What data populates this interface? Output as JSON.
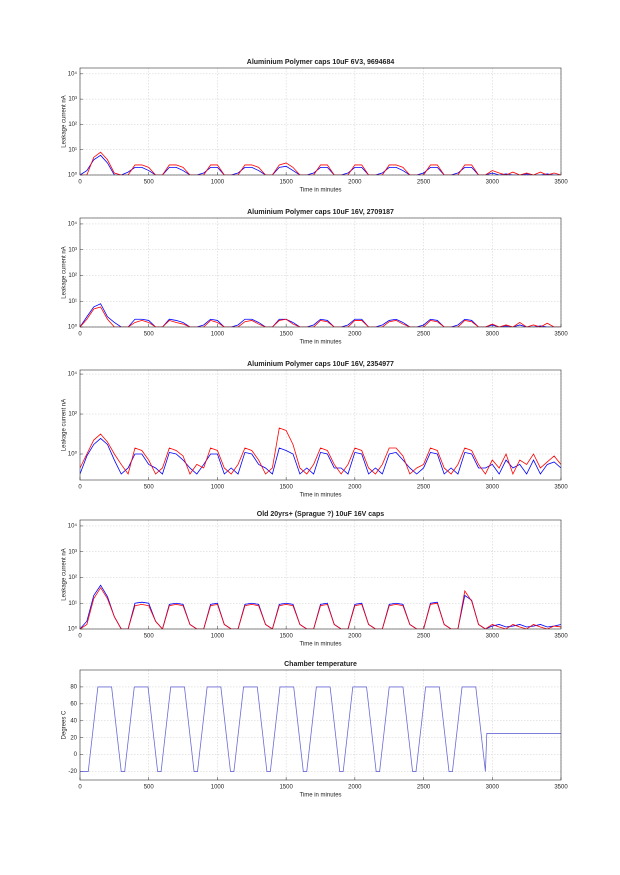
{
  "chart_data": [
    {
      "type": "line",
      "title": "Aluminium Polymer caps 10uF 6V3, 9694684",
      "xlabel": "Time in minutes",
      "ylabel": "Leakage current nA",
      "yscale": "log",
      "grid": true,
      "xlim": [
        0,
        3500
      ],
      "xticks": [
        0,
        500,
        1000,
        1500,
        2000,
        2500,
        3000,
        3500
      ],
      "ylim": [
        1,
        17000
      ],
      "yticks": [
        {
          "value": 1,
          "label": "10⁰"
        },
        {
          "value": 10,
          "label": "10¹"
        },
        {
          "value": 100,
          "label": "10²"
        },
        {
          "value": 1000,
          "label": "10³"
        },
        {
          "value": 10000,
          "label": "10⁴"
        }
      ],
      "x": [
        0,
        50,
        100,
        150,
        200,
        250,
        300,
        350,
        400,
        450,
        500,
        550,
        600,
        650,
        700,
        750,
        800,
        850,
        900,
        950,
        1000,
        1050,
        1100,
        1150,
        1200,
        1250,
        1300,
        1350,
        1400,
        1450,
        1500,
        1550,
        1600,
        1650,
        1700,
        1750,
        1800,
        1850,
        1900,
        1950,
        2000,
        2050,
        2100,
        2150,
        2200,
        2250,
        2300,
        2350,
        2400,
        2450,
        2500,
        2550,
        2600,
        2650,
        2700,
        2750,
        2800,
        2850,
        2900,
        2950,
        3000,
        3050,
        3100,
        3150,
        3200,
        3250,
        3300,
        3350,
        3400,
        3450,
        3500
      ],
      "series": [
        {
          "color": "#0000ff",
          "values": [
            1,
            1.5,
            4,
            6,
            3,
            1,
            1,
            1.3,
            2,
            2,
            1.5,
            1,
            1,
            2,
            2,
            1.5,
            1,
            1,
            1.2,
            2,
            2,
            1,
            1,
            1.2,
            2,
            2,
            1.5,
            1,
            1,
            2,
            2.2,
            1.5,
            1,
            1,
            1.2,
            2,
            2,
            1,
            1,
            1.2,
            2,
            2,
            1,
            1,
            1.2,
            2,
            2,
            1.5,
            1,
            1,
            1.2,
            2,
            2,
            1,
            1,
            1.2,
            2,
            2,
            1,
            1,
            1.2,
            1,
            1.1,
            1,
            1,
            1.1,
            1,
            1,
            1.1,
            1,
            1
          ]
        },
        {
          "color": "#ff0000",
          "values": [
            1,
            1,
            5,
            8,
            4,
            1.2,
            1,
            1,
            2.5,
            2.5,
            2,
            1,
            1,
            2.5,
            2.5,
            2,
            1,
            1,
            1,
            2.5,
            2.5,
            1,
            1,
            1,
            2.5,
            2.5,
            2,
            1,
            1,
            2.5,
            3,
            2,
            1,
            1,
            1,
            2.5,
            2.5,
            1,
            1,
            1,
            2.5,
            2.5,
            1,
            1,
            1,
            2.5,
            2.5,
            2,
            1,
            1,
            1,
            2.5,
            2.5,
            1,
            1,
            1,
            2.5,
            2.5,
            1,
            1,
            1.5,
            1.2,
            1,
            1.3,
            1,
            1.2,
            1,
            1.3,
            1,
            1.2,
            1
          ]
        }
      ]
    },
    {
      "type": "line",
      "title": "Aluminium Polymer caps 10uF 16V, 2709187",
      "xlabel": "Time in minutes",
      "ylabel": "Leakage current nA",
      "yscale": "log",
      "grid": true,
      "xlim": [
        0,
        3500
      ],
      "xticks": [
        0,
        500,
        1000,
        1500,
        2000,
        2500,
        3000,
        3500
      ],
      "ylim": [
        1,
        17000
      ],
      "yticks": [
        {
          "value": 1,
          "label": "10⁰"
        },
        {
          "value": 10,
          "label": "10¹"
        },
        {
          "value": 100,
          "label": "10²"
        },
        {
          "value": 1000,
          "label": "10³"
        },
        {
          "value": 10000,
          "label": "10⁴"
        }
      ],
      "x": [
        0,
        50,
        100,
        150,
        200,
        250,
        300,
        350,
        400,
        450,
        500,
        550,
        600,
        650,
        700,
        750,
        800,
        850,
        900,
        950,
        1000,
        1050,
        1100,
        1150,
        1200,
        1250,
        1300,
        1350,
        1400,
        1450,
        1500,
        1550,
        1600,
        1650,
        1700,
        1750,
        1800,
        1850,
        1900,
        1950,
        2000,
        2050,
        2100,
        2150,
        2200,
        2250,
        2300,
        2350,
        2400,
        2450,
        2500,
        2550,
        2600,
        2650,
        2700,
        2750,
        2800,
        2850,
        2900,
        2950,
        3000,
        3050,
        3100,
        3150,
        3200,
        3250,
        3300,
        3350,
        3400,
        3450,
        3500
      ],
      "series": [
        {
          "color": "#0000ff",
          "values": [
            1,
            2.5,
            6,
            8,
            2.5,
            1.5,
            1,
            1,
            2,
            2,
            1.8,
            1,
            1,
            2,
            1.8,
            1.5,
            1,
            1,
            1.2,
            2,
            1.8,
            1,
            1,
            1.2,
            2,
            2,
            1.5,
            1,
            1,
            2,
            2,
            1.5,
            1,
            1,
            1.2,
            2,
            1.8,
            1,
            1,
            1.2,
            2,
            2,
            1,
            1,
            1.2,
            1.8,
            2,
            1.5,
            1,
            1,
            1.2,
            2,
            1.8,
            1,
            1,
            1.2,
            2,
            1.8,
            1,
            1,
            1.2,
            1,
            1.1,
            1,
            1.2,
            1,
            1,
            1.1,
            1,
            1,
            1
          ]
        },
        {
          "color": "#ff0000",
          "values": [
            1,
            2,
            5,
            6,
            2,
            1,
            1,
            1,
            1.5,
            1.8,
            1.5,
            1,
            1,
            1.8,
            1.5,
            1.3,
            1,
            1,
            1,
            1.8,
            1.5,
            1,
            1,
            1,
            1.6,
            1.8,
            1.3,
            1,
            1,
            1.8,
            2,
            1.3,
            1,
            1,
            1,
            1.8,
            1.6,
            1,
            1,
            1,
            1.8,
            1.8,
            1,
            1,
            1,
            1.6,
            1.8,
            1.3,
            1,
            1,
            1,
            1.8,
            1.6,
            1,
            1,
            1,
            1.8,
            1.6,
            1,
            1,
            1.3,
            1,
            1.2,
            1,
            1.5,
            1,
            1.2,
            1,
            1.4,
            1,
            1
          ]
        }
      ]
    },
    {
      "type": "line",
      "title": "Aluminium Polymer caps 10uF 16V, 2354977",
      "xlabel": "Time in minutes",
      "ylabel": "Leakage current nA",
      "yscale": "log",
      "grid": true,
      "xlim": [
        0,
        3500
      ],
      "xticks": [
        0,
        500,
        1000,
        1500,
        2000,
        2500,
        3000,
        3500
      ],
      "ylim": [
        0.05,
        16000
      ],
      "yticks": [
        {
          "value": 1,
          "label": "10⁰"
        },
        {
          "value": 100,
          "label": "10²"
        },
        {
          "value": 10000,
          "label": "10⁴"
        }
      ],
      "x": [
        0,
        50,
        100,
        150,
        200,
        250,
        300,
        350,
        400,
        450,
        500,
        550,
        600,
        650,
        700,
        750,
        800,
        850,
        900,
        950,
        1000,
        1050,
        1100,
        1150,
        1200,
        1250,
        1300,
        1350,
        1400,
        1450,
        1500,
        1550,
        1600,
        1650,
        1700,
        1750,
        1800,
        1850,
        1900,
        1950,
        2000,
        2050,
        2100,
        2150,
        2200,
        2250,
        2300,
        2350,
        2400,
        2450,
        2500,
        2550,
        2600,
        2650,
        2700,
        2750,
        2800,
        2850,
        2900,
        2950,
        3000,
        3050,
        3100,
        3150,
        3200,
        3250,
        3300,
        3350,
        3400,
        3450,
        3500
      ],
      "series": [
        {
          "color": "#0000ff",
          "values": [
            0.1,
            0.8,
            3,
            6,
            3,
            0.5,
            0.1,
            0.2,
            1,
            1,
            0.3,
            0.2,
            0.1,
            1.2,
            1,
            0.5,
            0.2,
            0.1,
            0.3,
            1,
            1,
            0.1,
            0.2,
            0.1,
            1.2,
            1,
            0.3,
            0.2,
            0.1,
            2,
            1.5,
            1,
            0.1,
            0.2,
            0.1,
            1.2,
            1,
            0.2,
            0.2,
            0.1,
            1.2,
            1,
            0.1,
            0.2,
            0.1,
            1,
            1.2,
            0.5,
            0.2,
            0.1,
            0.2,
            1.2,
            1,
            0.1,
            0.2,
            0.1,
            1.2,
            1,
            0.2,
            0.2,
            0.3,
            0.1,
            0.5,
            0.2,
            0.3,
            0.1,
            0.5,
            0.1,
            0.3,
            0.4,
            0.2
          ]
        },
        {
          "color": "#ff0000",
          "values": [
            0.2,
            1,
            5,
            10,
            4,
            1,
            0.3,
            0.1,
            2,
            1.5,
            0.5,
            0.1,
            0.2,
            2,
            1.5,
            0.8,
            0.1,
            0.3,
            0.2,
            2,
            1.5,
            0.2,
            0.1,
            0.3,
            2,
            1.5,
            0.5,
            0.1,
            0.2,
            20,
            15,
            3,
            0.2,
            0.1,
            0.3,
            2,
            1.5,
            0.3,
            0.1,
            0.3,
            2,
            1.5,
            0.2,
            0.1,
            0.3,
            2,
            2,
            0.8,
            0.1,
            0.2,
            0.3,
            2,
            1.5,
            0.2,
            0.1,
            0.3,
            2,
            1.5,
            0.3,
            0.1,
            0.5,
            0.2,
            1,
            0.1,
            0.5,
            0.3,
            1,
            0.2,
            0.4,
            0.8,
            0.3
          ]
        }
      ]
    },
    {
      "type": "line",
      "title": "Old 20yrs+ (Sprague ?) 10uF 16V caps",
      "xlabel": "Time in minutes",
      "ylabel": "Leakage current nA",
      "yscale": "log",
      "grid": true,
      "xlim": [
        0,
        3500
      ],
      "xticks": [
        0,
        500,
        1000,
        1500,
        2000,
        2500,
        3000,
        3500
      ],
      "ylim": [
        1,
        17000
      ],
      "yticks": [
        {
          "value": 1,
          "label": "10⁰"
        },
        {
          "value": 10,
          "label": "10¹"
        },
        {
          "value": 100,
          "label": "10²"
        },
        {
          "value": 1000,
          "label": "10³"
        },
        {
          "value": 10000,
          "label": "10⁴"
        }
      ],
      "x": [
        0,
        50,
        100,
        150,
        200,
        250,
        300,
        350,
        400,
        450,
        500,
        550,
        600,
        650,
        700,
        750,
        800,
        850,
        900,
        950,
        1000,
        1050,
        1100,
        1150,
        1200,
        1250,
        1300,
        1350,
        1400,
        1450,
        1500,
        1550,
        1600,
        1650,
        1700,
        1750,
        1800,
        1850,
        1900,
        1950,
        2000,
        2050,
        2100,
        2150,
        2200,
        2250,
        2300,
        2350,
        2400,
        2450,
        2500,
        2550,
        2600,
        2650,
        2700,
        2750,
        2800,
        2850,
        2900,
        2950,
        3000,
        3050,
        3100,
        3150,
        3200,
        3250,
        3300,
        3350,
        3400,
        3450,
        3500
      ],
      "series": [
        {
          "color": "#0000ff",
          "values": [
            1,
            2,
            20,
            50,
            18,
            3,
            1,
            1,
            10,
            11,
            10,
            2,
            1,
            9,
            10,
            9,
            1.5,
            1,
            1,
            9,
            10,
            1.5,
            1,
            1,
            9,
            10,
            9,
            1.5,
            1,
            9,
            10,
            9,
            1.5,
            1,
            1,
            9,
            10,
            1.5,
            1,
            1,
            9,
            10,
            1.5,
            1,
            1,
            9,
            10,
            9,
            1.5,
            1,
            1,
            10,
            11,
            1.5,
            1,
            1,
            20,
            13,
            1.5,
            1,
            1.3,
            1.5,
            1.2,
            1.3,
            1.5,
            1.2,
            1.3,
            1.5,
            1.2,
            1.3,
            1.5
          ]
        },
        {
          "color": "#ff0000",
          "values": [
            1,
            1.5,
            15,
            40,
            15,
            3,
            1,
            1,
            8,
            9,
            8,
            2,
            1,
            8,
            9,
            8,
            1.5,
            1,
            1,
            8,
            9,
            1.5,
            1,
            1,
            8,
            9,
            8,
            1.5,
            1,
            8,
            9,
            8,
            1.5,
            1,
            1,
            8,
            9,
            1.5,
            1,
            1,
            8,
            9,
            1.5,
            1,
            1,
            8,
            9,
            8,
            1.5,
            1,
            1,
            9,
            10,
            1.5,
            1,
            1,
            30,
            12,
            1.5,
            1,
            1.5,
            1.2,
            1,
            1.5,
            1.2,
            1,
            1.5,
            1.2,
            1,
            1.3,
            1.2
          ]
        }
      ]
    },
    {
      "type": "line",
      "title": "Chamber temperature",
      "xlabel": "Time in minutes",
      "ylabel": "Degrees C",
      "yscale": "linear",
      "grid": true,
      "xlim": [
        0,
        3500
      ],
      "xticks": [
        0,
        500,
        1000,
        1500,
        2000,
        2500,
        3000,
        3500
      ],
      "ylim": [
        -30,
        100
      ],
      "yticks": [
        -20,
        0,
        20,
        40,
        60,
        80
      ],
      "x": [
        0,
        60,
        130,
        230,
        300,
        325,
        395,
        495,
        565,
        590,
        660,
        760,
        830,
        855,
        925,
        1025,
        1095,
        1120,
        1190,
        1290,
        1360,
        1385,
        1455,
        1555,
        1625,
        1650,
        1720,
        1820,
        1890,
        1915,
        1985,
        2085,
        2155,
        2180,
        2250,
        2350,
        2420,
        2445,
        2515,
        2615,
        2685,
        2710,
        2780,
        2880,
        2950,
        2960,
        3500
      ],
      "series": [
        {
          "color": "#6b6bd6",
          "values": [
            -20,
            -20,
            80,
            80,
            -20,
            -20,
            80,
            80,
            -20,
            -20,
            80,
            80,
            -20,
            -20,
            80,
            80,
            -20,
            -20,
            80,
            80,
            -20,
            -20,
            80,
            80,
            -20,
            -20,
            80,
            80,
            -20,
            -20,
            80,
            80,
            -20,
            -20,
            80,
            80,
            -20,
            -20,
            80,
            80,
            -20,
            -20,
            80,
            80,
            -20,
            25,
            25
          ]
        }
      ]
    }
  ]
}
